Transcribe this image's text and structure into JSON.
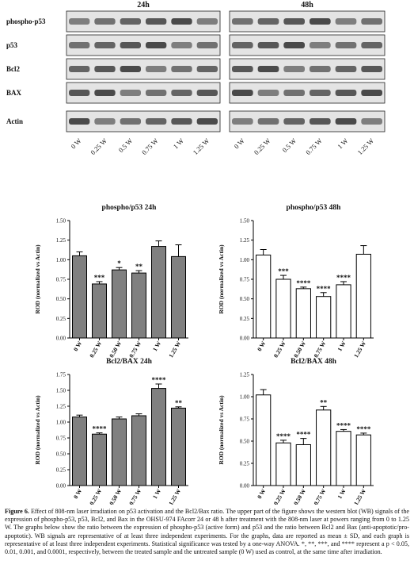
{
  "blot": {
    "columns": [
      "24h",
      "48h"
    ],
    "rows": [
      "phospho-p53",
      "p53",
      "Bcl2",
      "BAX",
      "Actin"
    ],
    "lanes": [
      "0 W",
      "0.25 W",
      "0.5 W",
      "0.75 W",
      "1 W",
      "1.25 W"
    ]
  },
  "chart_data": [
    {
      "type": "bar",
      "title": "phospho/p53 24h",
      "y_label": "ROD (normalized vs Actin)",
      "color": "#808080",
      "categories": [
        "0 W",
        "0.25 W",
        "0.50 W",
        "0.75 W",
        "1 W",
        "1.25 W"
      ],
      "values": [
        1.05,
        0.69,
        0.87,
        0.83,
        1.17,
        1.04
      ],
      "errors": [
        0.05,
        0.03,
        0.03,
        0.03,
        0.07,
        0.15
      ],
      "significance": [
        null,
        "***",
        "*",
        "**",
        null,
        null
      ],
      "ylim": [
        0,
        1.5
      ],
      "yticks": [
        {
          "value": 0,
          "label": "0.00"
        },
        {
          "value": 0.25,
          "label": "0.25"
        },
        {
          "value": 0.5,
          "label": "0.50"
        },
        {
          "value": 0.75,
          "label": "0.75"
        },
        {
          "value": 1,
          "label": "1.00"
        },
        {
          "value": 1.25,
          "label": "1.25"
        },
        {
          "value": 1.5,
          "label": "1.50"
        }
      ]
    },
    {
      "type": "bar",
      "title": "phospho/p53 48h",
      "y_label": "ROD (normalized vs Actin)",
      "color": "#ffffff",
      "categories": [
        "0 W",
        "0.25 W",
        "0.50 W",
        "0.75 W",
        "1 W",
        "1.25 W"
      ],
      "values": [
        1.06,
        0.75,
        0.63,
        0.53,
        0.68,
        1.07
      ],
      "errors": [
        0.07,
        0.05,
        0.02,
        0.05,
        0.04,
        0.11
      ],
      "significance": [
        null,
        "***",
        "****",
        "****",
        "****",
        null
      ],
      "ylim": [
        0,
        1.5
      ],
      "yticks": [
        {
          "value": 0,
          "label": "0.00"
        },
        {
          "value": 0.25,
          "label": "0.25"
        },
        {
          "value": 0.5,
          "label": "0.50"
        },
        {
          "value": 0.75,
          "label": "0.75"
        },
        {
          "value": 1,
          "label": "1.00"
        },
        {
          "value": 1.25,
          "label": "1.25"
        },
        {
          "value": 1.5,
          "label": "1.50"
        }
      ]
    },
    {
      "type": "bar",
      "title": "Bcl2/BAX 24h",
      "y_label": "ROD (normalized vs Actin)",
      "color": "#808080",
      "categories": [
        "0 W",
        "0.25 W",
        "0.50 W",
        "0.75 W",
        "1 W",
        "1.25 W"
      ],
      "values": [
        1.08,
        0.81,
        1.05,
        1.1,
        1.53,
        1.22
      ],
      "errors": [
        0.03,
        0.02,
        0.03,
        0.03,
        0.07,
        0.02
      ],
      "significance": [
        null,
        "****",
        null,
        null,
        "****",
        "**"
      ],
      "ylim": [
        0,
        1.75
      ],
      "yticks": [
        {
          "value": 0,
          "label": "0.00"
        },
        {
          "value": 0.25,
          "label": "0.25"
        },
        {
          "value": 0.5,
          "label": "0.50"
        },
        {
          "value": 0.75,
          "label": "0.75"
        },
        {
          "value": 1,
          "label": "1.00"
        },
        {
          "value": 1.25,
          "label": "1.25"
        },
        {
          "value": 1.5,
          "label": "1.50"
        },
        {
          "value": 1.75,
          "label": "1.75"
        }
      ]
    },
    {
      "type": "bar",
      "title": "Bcl2/BAX 48h",
      "y_label": "ROD (normalized vs Actin)",
      "color": "#ffffff",
      "categories": [
        "0 W",
        "0.25 W",
        "0.50 W",
        "0.75 W",
        "1 W",
        "1.25 W"
      ],
      "values": [
        1.02,
        0.48,
        0.46,
        0.85,
        0.61,
        0.57
      ],
      "errors": [
        0.06,
        0.03,
        0.07,
        0.04,
        0.02,
        0.02
      ],
      "significance": [
        null,
        "****",
        "****",
        "**",
        "****",
        "****"
      ],
      "ylim": [
        0,
        1.25
      ],
      "yticks": [
        {
          "value": 0,
          "label": "0.00"
        },
        {
          "value": 0.25,
          "label": "0.25"
        },
        {
          "value": 0.5,
          "label": "0.50"
        },
        {
          "value": 0.75,
          "label": "0.75"
        },
        {
          "value": 1,
          "label": "1.00"
        },
        {
          "value": 1.25,
          "label": "1.25"
        }
      ]
    }
  ],
  "caption": {
    "label": "Figure 6.",
    "text": "Effect of 808-nm laser irradiation on p53 activation and the Bcl2/Bax ratio. The upper part of the figure shows the western blot (WB) signals of the expression of phospho-p53, p53, Bcl2, and Bax in the OHSU-974 FAcorr 24 or 48 h after treatment with the 808-nm laser at powers ranging from 0 to 1.25 W. The graphs below show the ratio between the expression of phospho-p53 (active form) and p53 and the ratio between Bcl2 and Bax (anti-apoptotic/pro-apoptotic). WB signals are representative of at least three independent experiments. For the graphs, data are reported as mean ± SD, and each graph is representative of at least three independent experiments. Statistical significance was tested by a one-way ANOVA. *, **, ***, and **** represent a p < 0.05, 0.01, 0.001, and 0.0001, respectively, between the treated sample and the untreated sample (0 W) used as control, at the same time after irradiation."
  }
}
